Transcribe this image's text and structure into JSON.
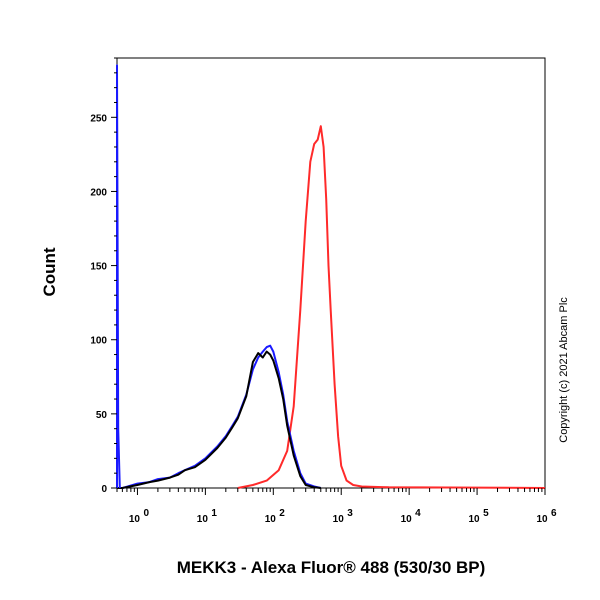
{
  "chart_data": {
    "type": "line",
    "title": "",
    "xlabel": "MEKK3 - Alexa Fluor® 488 (530/30 BP)",
    "ylabel": "Count",
    "x_scale": "log",
    "xlim": [
      0.5,
      1000000
    ],
    "ylim": [
      0,
      290
    ],
    "x_ticks": [
      {
        "value": 1,
        "base": "10",
        "exp": "0"
      },
      {
        "value": 10,
        "base": "10",
        "exp": "1"
      },
      {
        "value": 100,
        "base": "10",
        "exp": "2"
      },
      {
        "value": 1000,
        "base": "10",
        "exp": "3"
      },
      {
        "value": 10000,
        "base": "10",
        "exp": "4"
      },
      {
        "value": 100000,
        "base": "10",
        "exp": "5"
      },
      {
        "value": 1000000,
        "base": "10",
        "exp": "6"
      }
    ],
    "y_ticks": [
      0,
      50,
      100,
      150,
      200,
      250
    ],
    "grid": false,
    "legend": "none",
    "annotation": "Copyright (c) 2021 Abcam Plc",
    "series": [
      {
        "color": "#ff2a2a",
        "x": [
          30,
          50,
          80,
          120,
          160,
          200,
          250,
          300,
          350,
          400,
          450,
          500,
          550,
          600,
          650,
          700,
          800,
          900,
          1000,
          1200,
          1500,
          2000,
          5000,
          100000,
          1000000
        ],
        "y": [
          0,
          2,
          5,
          12,
          25,
          55,
          120,
          180,
          220,
          232,
          235,
          244,
          230,
          195,
          150,
          120,
          70,
          35,
          15,
          5,
          2,
          1,
          0.5,
          0.3,
          0
        ]
      },
      {
        "color": "#1a1aff",
        "x": [
          0.5,
          0.6,
          1,
          1.5,
          2,
          3,
          4,
          5,
          7,
          10,
          15,
          20,
          25,
          30,
          40,
          50,
          60,
          70,
          80,
          90,
          100,
          120,
          140,
          160,
          200,
          250,
          300,
          400,
          500
        ],
        "y": [
          0,
          0,
          3,
          4,
          6,
          7,
          10,
          12,
          15,
          20,
          28,
          35,
          42,
          48,
          63,
          80,
          88,
          92,
          95,
          96,
          92,
          78,
          63,
          45,
          25,
          10,
          3,
          1,
          0
        ]
      },
      {
        "color": "#000000",
        "x": [
          0.5,
          0.6,
          1,
          1.5,
          2,
          3,
          4,
          5,
          7,
          10,
          15,
          20,
          25,
          30,
          40,
          50,
          60,
          70,
          80,
          90,
          100,
          120,
          140,
          160,
          200,
          250,
          300,
          400,
          500
        ],
        "y": [
          0,
          0,
          2,
          4,
          5,
          7,
          9,
          12,
          14,
          19,
          27,
          34,
          41,
          47,
          62,
          85,
          91,
          88,
          92,
          90,
          86,
          74,
          60,
          42,
          22,
          8,
          2,
          0.5,
          0
        ]
      },
      {
        "color": "#1a1aff",
        "x": [
          0.5,
          0.5,
          0.52,
          0.55
        ],
        "y": [
          0,
          285,
          40,
          0
        ]
      }
    ]
  }
}
